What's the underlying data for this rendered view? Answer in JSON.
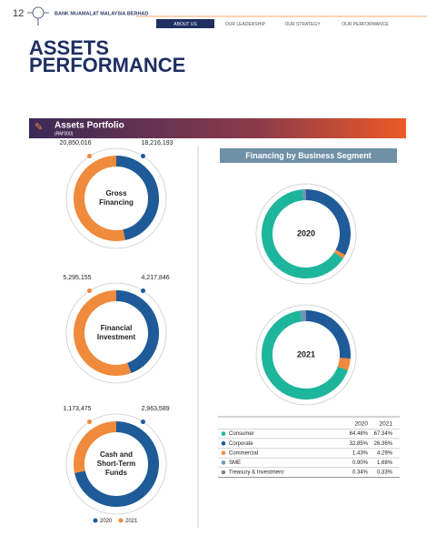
{
  "header": {
    "page_number": "12",
    "company": "BANK MUAMALAT MALAYSIA BERHAD",
    "nav": [
      "ABOUT US",
      "OUR LEADERSHIP",
      "OUR STRATEGY",
      "OUR PERFORMANCE"
    ]
  },
  "title": [
    "ASSETS",
    "PERFORMANCE"
  ],
  "section": {
    "title": "Assets Portfolio",
    "unit": "(RM'000)"
  },
  "legend": [
    {
      "name": "2020",
      "color": "#1e5b98"
    },
    {
      "name": "2021",
      "color": "#f08a3c"
    }
  ],
  "segments": {
    "title": "Financing by Business Segment",
    "categories": [
      "Consumer",
      "Corporate",
      "Commercial",
      "SME",
      "Treasury & Investment"
    ],
    "colors": [
      "#1db59b",
      "#1e5b98",
      "#f08a3c",
      "#6d93b8",
      "#86799a"
    ]
  },
  "chart_data": [
    {
      "type": "donut",
      "title": "Gross Financing",
      "values": [
        18216193,
        20850016
      ],
      "value_labels": [
        "18,216,193",
        "20,850,016"
      ]
    },
    {
      "type": "donut",
      "title": "Financial Investment",
      "values": [
        4217846,
        5295155
      ],
      "value_labels": [
        "4,217,846",
        "5,295,155"
      ]
    },
    {
      "type": "donut",
      "title": "Cash and Short-Term Funds",
      "values": [
        2963589,
        1173475
      ],
      "value_labels": [
        "2,963,589",
        "1,173,475"
      ]
    },
    {
      "type": "segment-donut",
      "title": "2020",
      "values": [
        64.48,
        32.85,
        1.43,
        0.9,
        0.34
      ],
      "value_labels": [
        "64.48%",
        "32.85%",
        "1.43%",
        "0.90%",
        "0.34%"
      ]
    },
    {
      "type": "segment-donut",
      "title": "2021",
      "values": [
        67.34,
        26.36,
        4.29,
        1.68,
        0.33
      ],
      "value_labels": [
        "67.34%",
        "26.36%",
        "4.29%",
        "1.68%",
        "0.33%"
      ]
    }
  ]
}
